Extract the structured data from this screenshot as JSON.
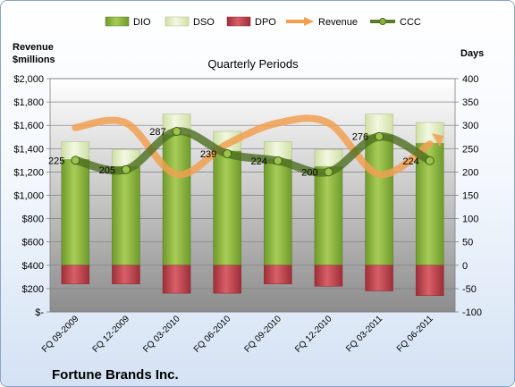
{
  "chart_data": {
    "type": "bar",
    "title": "Quarterly Periods",
    "company": "Fortune Brands Inc.",
    "y_left_label_line1": "Revenue",
    "y_left_label_line2": "$millions",
    "y_right_label": "Days",
    "categories": [
      "FQ 09-2009",
      "FQ 12-2009",
      "FQ 03-2010",
      "FQ 06-2010",
      "FQ 09-2010",
      "FQ 12-2010",
      "FQ 03-2011",
      "FQ 06-2011"
    ],
    "y_left_ticks": [
      "$2,000",
      "$1,800",
      "$1,600",
      "$1,400",
      "$1,200",
      "$1,000",
      "$800",
      "$600",
      "$400",
      "$200",
      "$-"
    ],
    "y_right_ticks": [
      "400",
      "350",
      "300",
      "250",
      "200",
      "150",
      "100",
      "50",
      "0",
      "-50",
      "-100"
    ],
    "ylim_left": [
      0,
      2000
    ],
    "ylim_right": [
      -100,
      400
    ],
    "legend_placement": "top",
    "series": [
      {
        "name": "DIO",
        "kind": "bar",
        "color": "#8cb43c",
        "values": [
          227,
          212,
          280,
          245,
          227,
          212,
          280,
          262
        ]
      },
      {
        "name": "DSO",
        "kind": "bar",
        "color": "#e6f0c8",
        "values": [
          38,
          36,
          44,
          42,
          38,
          36,
          44,
          44
        ]
      },
      {
        "name": "DPO",
        "kind": "bar",
        "color": "#c0404a",
        "values": [
          -40,
          -40,
          -60,
          -60,
          -40,
          -45,
          -55,
          -65
        ]
      },
      {
        "name": "Revenue",
        "kind": "line",
        "color": "#f0a050",
        "values": [
          1580,
          1620,
          1180,
          1440,
          1620,
          1620,
          1180,
          1440
        ]
      },
      {
        "name": "CCC",
        "kind": "line",
        "color": "#5a7a2a",
        "values": [
          225,
          205,
          287,
          239,
          224,
          200,
          276,
          224
        ]
      }
    ],
    "ccc_labels": [
      "225",
      "205",
      "287",
      "239",
      "224",
      "200",
      "276",
      "224"
    ]
  }
}
